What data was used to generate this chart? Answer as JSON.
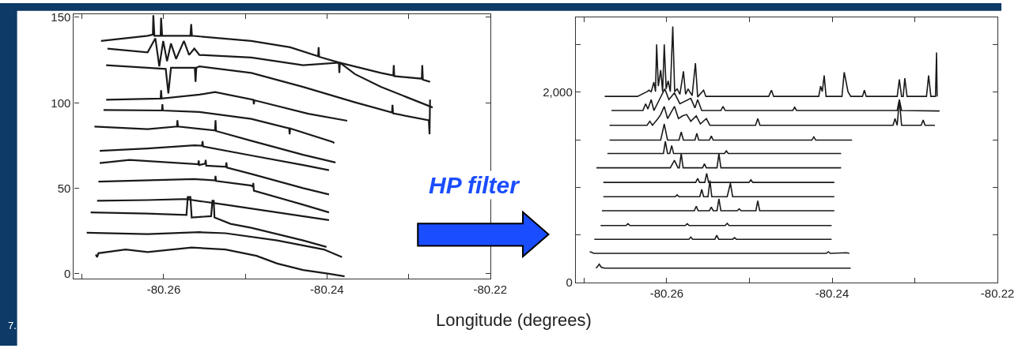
{
  "chart_data": [
    {
      "type": "line",
      "xlabel": "Longitude (degrees)",
      "annotations": [
        "7."
      ],
      "xlim": [
        -80.271,
        -80.22
      ],
      "xticks": [
        {
          "value": -80.27,
          "label": null
        },
        -80.26,
        {
          "value": -80.25,
          "label": null
        },
        -80.24,
        {
          "value": -80.23,
          "label": null
        },
        -80.22
      ],
      "ylim": [
        -3,
        152
      ],
      "yticks": [
        0,
        50,
        100,
        150
      ],
      "series": [
        {
          "color": "#1a1a1a",
          "x": [
            -80.26768,
            -80.26197,
            -80.26133,
            -80.26127,
            -80.26114,
            -80.26038,
            -80.26032,
            -80.26019,
            -80.25673,
            -80.25663,
            -80.25654,
            -80.24927,
            -80.24451,
            -80.24108,
            -80.24102,
            -80.24095,
            -80.23848,
            -80.2334,
            -80.23187,
            -80.23181,
            -80.23175,
            -80.22838,
            -80.22832,
            -80.22825,
            -80.22737
          ],
          "values": [
            136.2,
            139.2,
            139.9,
            151.2,
            139.2,
            139.2,
            149.7,
            139.2,
            139.2,
            146.0,
            139.2,
            136.2,
            132.5,
            127.2,
            132.5,
            126.9,
            123.5,
            117.5,
            116.0,
            122.0,
            115.6,
            114.1,
            122.0,
            113.5,
            112.3
          ]
        },
        {
          "color": "#1a1a1a",
          "x": [
            -80.26689,
            -80.26197,
            -80.26102,
            -80.26054,
            -80.26006,
            -80.25959,
            -80.25911,
            -80.25848,
            -80.25752,
            -80.25689,
            -80.25625,
            -80.25562,
            -80.24927,
            -80.24292,
            -80.23854,
            -80.23848,
            -80.23841,
            -80.23657,
            -80.2334,
            -80.23022,
            -80.22705
          ],
          "values": [
            131.7,
            129.5,
            137.7,
            121.3,
            136.2,
            124.3,
            134.7,
            125.7,
            136.2,
            128.0,
            131.7,
            128.0,
            126.5,
            122.0,
            123.5,
            117.5,
            123.5,
            116.8,
            109.3,
            103.3,
            97.3
          ]
        },
        {
          "color": "#1a1a1a",
          "x": [
            -80.26705,
            -80.26197,
            -80.25975,
            -80.25943,
            -80.25911,
            -80.25619,
            -80.2561,
            -80.256,
            -80.25562,
            -80.24927,
            -80.24292,
            -80.23657,
            -80.23203,
            -80.23197,
            -80.2319,
            -80.22752,
            -80.22743,
            -80.22737
          ],
          "values": [
            122.0,
            120.5,
            119.8,
            105.5,
            120.5,
            120.5,
            112.3,
            120.5,
            121.3,
            117.5,
            109.3,
            100.3,
            94.3,
            98.8,
            93.8,
            89.8,
            81.6,
            101.8
          ]
        },
        {
          "color": "#1a1a1a",
          "x": [
            -80.26705,
            -80.26038,
            -80.26032,
            -80.26025,
            -80.25562,
            -80.25371,
            -80.24902,
            -80.24895,
            -80.24889,
            -80.24229,
            -80.23752
          ],
          "values": [
            101.8,
            102.5,
            107.4,
            102.5,
            104.8,
            106.3,
            101.8,
            99.1,
            101.5,
            93.6,
            89.5
          ]
        },
        {
          "color": "#1a1a1a",
          "x": [
            -80.26737,
            -80.26022,
            -80.26016,
            -80.2601,
            -80.25562,
            -80.24927,
            -80.24463,
            -80.24457,
            -80.24451,
            -80.23927,
            -80.23911
          ],
          "values": [
            95.8,
            95.5,
            99.1,
            95.5,
            94.6,
            90.6,
            85.0,
            81.6,
            85.0,
            77.1,
            76.3
          ]
        },
        {
          "color": "#1a1a1a",
          "x": [
            -80.26848,
            -80.26197,
            -80.25838,
            -80.25832,
            -80.25825,
            -80.25371,
            -80.25365,
            -80.25359,
            -80.24927,
            -80.24292,
            -80.23895
          ],
          "values": [
            86.1,
            84.6,
            86.1,
            89.8,
            86.1,
            83.8,
            89.8,
            83.5,
            77.8,
            69.6,
            65.1
          ]
        },
        {
          "color": "#1a1a1a",
          "x": [
            -80.26784,
            -80.26197,
            -80.25625,
            -80.2553,
            -80.25524,
            -80.25517,
            -80.24927,
            -80.24292,
            -80.23975
          ],
          "values": [
            71.9,
            73.3,
            75.1,
            74.9,
            77.5,
            74.5,
            69.2,
            63.6,
            60.6
          ]
        },
        {
          "color": "#1a1a1a",
          "x": [
            -80.26784,
            -80.26419,
            -80.25578,
            -80.25571,
            -80.25565,
            -80.25492,
            -80.25486,
            -80.25479,
            -80.25238,
            -80.25232,
            -80.25225,
            -80.24927,
            -80.24292,
            -80.23975
          ],
          "values": [
            64.7,
            66.6,
            64.1,
            66.2,
            63.6,
            64.4,
            66.6,
            63.2,
            62.6,
            65.1,
            62.1,
            58.4,
            50.1,
            46.4
          ]
        },
        {
          "color": "#1a1a1a",
          "x": [
            -80.268,
            -80.25625,
            -80.25371,
            -80.25365,
            -80.25359,
            -80.24927,
            -80.24908,
            -80.24902,
            -80.24895,
            -80.24292,
            -80.23975
          ],
          "values": [
            53.9,
            55.4,
            54.6,
            57.2,
            54.3,
            51.6,
            50.9,
            53.1,
            48.6,
            40.4,
            35.9
          ]
        },
        {
          "color": "#1a1a1a",
          "x": [
            -80.26816,
            -80.26197,
            -80.25705,
            -80.25698,
            -80.25692,
            -80.25244,
            -80.2461,
            -80.23975
          ],
          "values": [
            42.7,
            43.1,
            43.7,
            45.1,
            43.4,
            40.4,
            35.9,
            31.4
          ]
        },
        {
          "color": "#1a1a1a",
          "x": [
            -80.26895,
            -80.26197,
            -80.25721,
            -80.25705,
            -80.25673,
            -80.25657,
            -80.25419,
            -80.25403,
            -80.25387,
            -80.25378,
            -80.25181,
            -80.24927,
            -80.24292,
            -80.24006
          ],
          "values": [
            35.9,
            35.2,
            34.4,
            44.9,
            44.9,
            32.9,
            33.7,
            42.7,
            42.7,
            32.9,
            29.2,
            26.9,
            19.5,
            15.7
          ]
        },
        {
          "color": "#1a1a1a",
          "x": [
            -80.26943,
            -80.26197,
            -80.25562,
            -80.25244,
            -80.2461,
            -80.24038,
            -80.23816
          ],
          "values": [
            24.0,
            23.2,
            24.3,
            23.7,
            19.5,
            14.2,
            9.7
          ]
        },
        {
          "color": "#1a1a1a",
          "x": [
            -80.26832,
            -80.26816,
            -80.268,
            -80.26467,
            -80.26197,
            -80.25657,
            -80.25244,
            -80.24863,
            -80.2461,
            -80.24292,
            -80.23975,
            -80.23784
          ],
          "values": [
            11.2,
            9.7,
            12.0,
            14.2,
            12.7,
            15.3,
            14.2,
            10.5,
            6.0,
            2.2,
            0.0,
            -1.5
          ]
        }
      ]
    },
    {
      "type": "line",
      "annotations": [
        "HP filter"
      ],
      "xlim": [
        -80.271,
        -80.22
      ],
      "xticks": [
        {
          "value": -80.27,
          "label": null
        },
        -80.26,
        {
          "value": -80.25,
          "label": null
        },
        -80.24,
        {
          "value": -80.23,
          "label": null
        },
        -80.22
      ],
      "ylim": [
        0,
        2790
      ],
      "yticks": [
        0,
        {
          "value": 500,
          "label": null
        },
        {
          "value": 1000,
          "label": null
        },
        {
          "value": 1500,
          "label": null
        },
        {
          "value": 2000,
          "label": "2,000"
        },
        {
          "value": 2500,
          "label": null
        }
      ],
      "series": [
        {
          "color": "#1a1a1a",
          "x": [
            -80.2675,
            -80.26354,
            -80.26238,
            -80.26215,
            -80.26188,
            -80.26155,
            -80.26136,
            -80.26122,
            -80.26102,
            -80.26073,
            -80.2605,
            -80.2603,
            -80.26007,
            -80.25983,
            -80.25957,
            -80.25927,
            -80.25904,
            -80.25874,
            -80.25841,
            -80.25798,
            -80.25772,
            -80.25742,
            -80.25693,
            -80.25653,
            -80.25626,
            -80.25554,
            -80.25527,
            -80.24767,
            -80.24734,
            -80.24707,
            -80.24162,
            -80.24139,
            -80.24119,
            -80.24096,
            -80.24073,
            -80.23881,
            -80.23854,
            -80.23808,
            -80.23775,
            -80.23633,
            -80.2361,
            -80.23587,
            -80.23213,
            -80.23187,
            -80.2316,
            -80.2314,
            -80.23121,
            -80.23094,
            -80.22859,
            -80.22833,
            -80.22806,
            -80.2275,
            -80.22737,
            -80.2273
          ],
          "values": [
            1956,
            1956,
            2006,
            2021,
            2006,
            2106,
            2006,
            2502,
            2063,
            2233,
            2006,
            2502,
            2035,
            2120,
            2006,
            2691,
            2006,
            2035,
            1978,
            2219,
            1978,
            2035,
            1964,
            2304,
            1950,
            2021,
            1956,
            1956,
            2021,
            1956,
            1956,
            2063,
            2006,
            2176,
            1956,
            1956,
            2210,
            2006,
            1956,
            1956,
            2021,
            1956,
            1956,
            2134,
            1956,
            1956,
            2148,
            1956,
            1956,
            2176,
            1956,
            1956,
            2417,
            1956
          ]
        },
        {
          "color": "#1a1a1a",
          "x": [
            -80.26668,
            -80.26288,
            -80.26255,
            -80.26228,
            -80.26188,
            -80.26155,
            -80.26089,
            -80.26023,
            -80.25974,
            -80.25907,
            -80.25841,
            -80.25709,
            -80.25659,
            -80.25626,
            -80.25577,
            -80.25345,
            -80.25319,
            -80.25293,
            -80.24476,
            -80.24453,
            -80.2443,
            -80.23213,
            -80.23187,
            -80.2316,
            -80.22701
          ],
          "values": [
            1808,
            1808,
            1879,
            1823,
            1922,
            1808,
            1922,
            2035,
            1922,
            1992,
            1879,
            1936,
            1836,
            1922,
            1808,
            1808,
            1851,
            1808,
            1808,
            1842,
            1808,
            1808,
            1922,
            1808,
            1803
          ]
        },
        {
          "color": "#1a1a1a",
          "x": [
            -80.26691,
            -80.26238,
            -80.26205,
            -80.26172,
            -80.26106,
            -80.26073,
            -80.2603,
            -80.2599,
            -80.25907,
            -80.25858,
            -80.25808,
            -80.25759,
            -80.25709,
            -80.25643,
            -80.25593,
            -80.25521,
            -80.25478,
            -80.24926,
            -80.24899,
            -80.24873,
            -80.23263,
            -80.23239,
            -80.23213,
            -80.23187,
            -80.2316,
            -80.22922,
            -80.22899,
            -80.22876,
            -80.22757
          ],
          "values": [
            1653,
            1653,
            1695,
            1653,
            1723,
            1766,
            1851,
            1723,
            1851,
            1723,
            1752,
            1766,
            1695,
            1752,
            1667,
            1723,
            1653,
            1653,
            1723,
            1653,
            1653,
            1723,
            1653,
            1922,
            1653,
            1653,
            1709,
            1653,
            1653
          ]
        },
        {
          "color": "#1a1a1a",
          "x": [
            -80.26691,
            -80.26073,
            -80.2603,
            -80.2599,
            -80.25851,
            -80.25825,
            -80.25798,
            -80.25659,
            -80.25636,
            -80.25613,
            -80.25484,
            -80.25461,
            -80.25438,
            -80.24245,
            -80.24221,
            -80.24198,
            -80.23759
          ],
          "values": [
            1497,
            1497,
            1667,
            1497,
            1497,
            1582,
            1497,
            1497,
            1568,
            1497,
            1497,
            1540,
            1497,
            1497,
            1531,
            1497,
            1497
          ]
        },
        {
          "color": "#1a1a1a",
          "x": [
            -80.26717,
            -80.2604,
            -80.26017,
            -80.2599,
            -80.25964,
            -80.2594,
            -80.25917,
            -80.25302,
            -80.25279,
            -80.25256,
            -80.23891
          ],
          "values": [
            1356,
            1356,
            1483,
            1356,
            1356,
            1440,
            1356,
            1356,
            1384,
            1356,
            1356
          ]
        },
        {
          "color": "#1a1a1a",
          "x": [
            -80.2685,
            -80.25957,
            -80.25907,
            -80.25864,
            -80.25848,
            -80.25825,
            -80.25802,
            -80.25567,
            -80.25544,
            -80.25521,
            -80.25392,
            -80.25369,
            -80.25345,
            -80.23891
          ],
          "values": [
            1206,
            1206,
            1285,
            1206,
            1206,
            1356,
            1206,
            1206,
            1248,
            1206,
            1206,
            1356,
            1206,
            1206
          ]
        },
        {
          "color": "#1a1a1a",
          "x": [
            -80.26767,
            -80.2565,
            -80.25626,
            -80.25603,
            -80.2554,
            -80.25517,
            -80.25494,
            -80.25005,
            -80.24982,
            -80.24959,
            -80.23973
          ],
          "values": [
            1053,
            1053,
            1095,
            1053,
            1053,
            1149,
            1053,
            1053,
            1081,
            1053,
            1053
          ]
        },
        {
          "color": "#1a1a1a",
          "x": [
            -80.26767,
            -80.25898,
            -80.25874,
            -80.25851,
            -80.256,
            -80.25577,
            -80.25554,
            -80.25501,
            -80.25478,
            -80.25455,
            -80.25269,
            -80.2523,
            -80.25203,
            -80.23973
          ],
          "values": [
            903,
            903,
            923,
            903,
            903,
            979,
            903,
            903,
            1073,
            903,
            903,
            1044,
            903,
            903
          ]
        },
        {
          "color": "#1a1a1a",
          "x": [
            -80.26784,
            -80.25666,
            -80.25643,
            -80.2562,
            -80.25484,
            -80.25461,
            -80.25438,
            -80.25392,
            -80.25369,
            -80.25345,
            -80.25147,
            -80.25124,
            -80.25101,
            -80.24922,
            -80.24899,
            -80.24876,
            -80.23973
          ],
          "values": [
            756,
            756,
            804,
            756,
            756,
            795,
            756,
            756,
            880,
            756,
            756,
            775,
            756,
            756,
            860,
            756,
            756
          ]
        },
        {
          "color": "#1a1a1a",
          "x": [
            -80.268,
            -80.26493,
            -80.26469,
            -80.26446,
            -80.25775,
            -80.25752,
            -80.25729,
            -80.25293,
            -80.25269,
            -80.25246,
            -80.24006
          ],
          "values": [
            600,
            600,
            620,
            600,
            600,
            620,
            600,
            600,
            623,
            600,
            600
          ]
        },
        {
          "color": "#1a1a1a",
          "x": [
            -80.26876,
            -80.25732,
            -80.25709,
            -80.25686,
            -80.25418,
            -80.25395,
            -80.25372,
            -80.25203,
            -80.2518,
            -80.25157,
            -80.24006
          ],
          "values": [
            456,
            456,
            478,
            456,
            456,
            498,
            456,
            456,
            473,
            456,
            456
          ]
        },
        {
          "color": "#1a1a1a",
          "x": [
            -80.26932,
            -80.26916,
            -80.26883,
            -80.24069,
            -80.24046,
            -80.24023,
            -80.23825,
            -80.23792
          ],
          "values": [
            323,
            323,
            308,
            308,
            325,
            308,
            314,
            308
          ]
        },
        {
          "color": "#1a1a1a",
          "x": [
            -80.26856,
            -80.26833,
            -80.26817,
            -80.2679,
            -80.2675,
            -80.23775
          ],
          "values": [
            153,
            173,
            195,
            161,
            153,
            153
          ]
        }
      ]
    }
  ]
}
